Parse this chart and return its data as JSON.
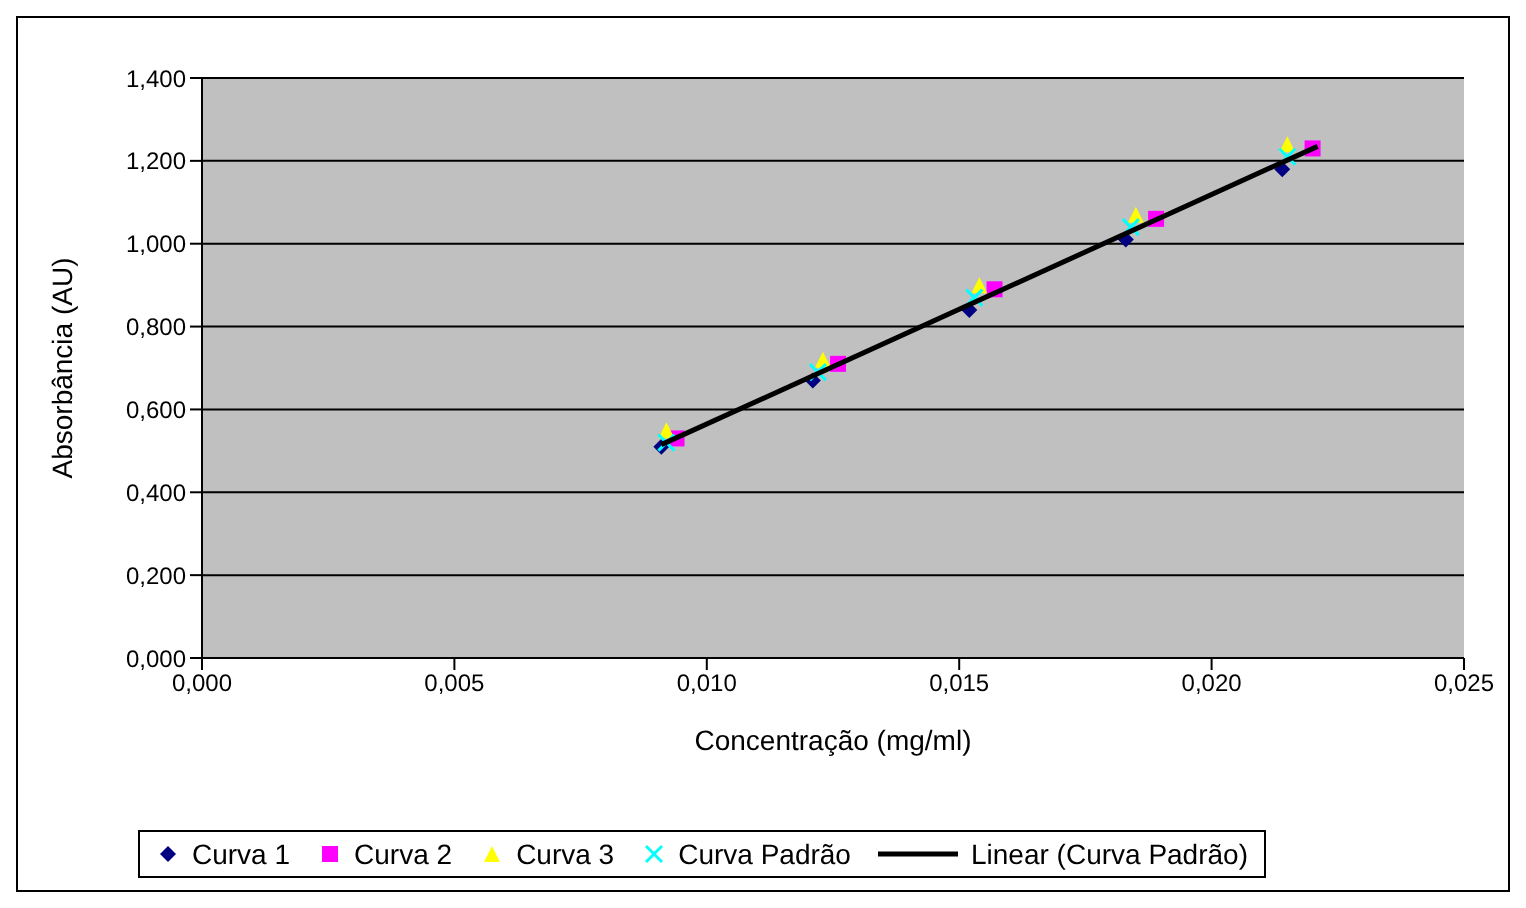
{
  "chart_data": {
    "type": "scatter",
    "xlabel": "Concentração (mg/ml)",
    "ylabel": "Absorbância (AU)",
    "xlim": [
      0,
      0.025
    ],
    "xticks": [
      {
        "value": 0,
        "label": "0,000"
      },
      {
        "value": 0.005,
        "label": "0,005"
      },
      {
        "value": 0.01,
        "label": "0,010"
      },
      {
        "value": 0.015,
        "label": "0,015"
      },
      {
        "value": 0.02,
        "label": "0,020"
      },
      {
        "value": 0.025,
        "label": "0,025"
      }
    ],
    "ylim": [
      0,
      1.4
    ],
    "yticks": [
      {
        "value": 0,
        "label": "0,000"
      },
      {
        "value": 0.2,
        "label": "0,200"
      },
      {
        "value": 0.4,
        "label": "0,400"
      },
      {
        "value": 0.6,
        "label": "0,600"
      },
      {
        "value": 0.8,
        "label": "0,800"
      },
      {
        "value": 1.0,
        "label": "1,000"
      },
      {
        "value": 1.2,
        "label": "1,200"
      },
      {
        "value": 1.4,
        "label": "1,400"
      }
    ],
    "grid": "y",
    "legend": "bottom",
    "series": [
      {
        "name": "Curva 1",
        "color": "#000080",
        "marker": "diamond",
        "x": [
          0.0091,
          0.0121,
          0.0152,
          0.0183,
          0.0214
        ],
        "values": [
          0.51,
          0.67,
          0.84,
          1.01,
          1.18
        ]
      },
      {
        "name": "Curva 2",
        "color": "#ff00ff",
        "marker": "square",
        "x": [
          0.0094,
          0.0126,
          0.0157,
          0.0189,
          0.022
        ],
        "values": [
          0.53,
          0.71,
          0.89,
          1.06,
          1.23
        ]
      },
      {
        "name": "Curva 3",
        "color": "#ffff00",
        "marker": "triangle",
        "x": [
          0.0092,
          0.0123,
          0.0154,
          0.0185,
          0.0215
        ],
        "values": [
          0.55,
          0.72,
          0.9,
          1.07,
          1.24
        ]
      },
      {
        "name": "Curva Padrão",
        "color": "#00ffff",
        "marker": "cross",
        "x": [
          0.0092,
          0.0122,
          0.0153,
          0.0184,
          0.0215
        ],
        "values": [
          0.52,
          0.69,
          0.87,
          1.04,
          1.21
        ]
      },
      {
        "name": "Linear (Curva Padrão)",
        "type": "line",
        "color": "#000000",
        "marker": "none",
        "line_style": "solid",
        "x": [
          0.0091,
          0.0221
        ],
        "values": [
          0.515,
          1.235
        ]
      }
    ]
  }
}
